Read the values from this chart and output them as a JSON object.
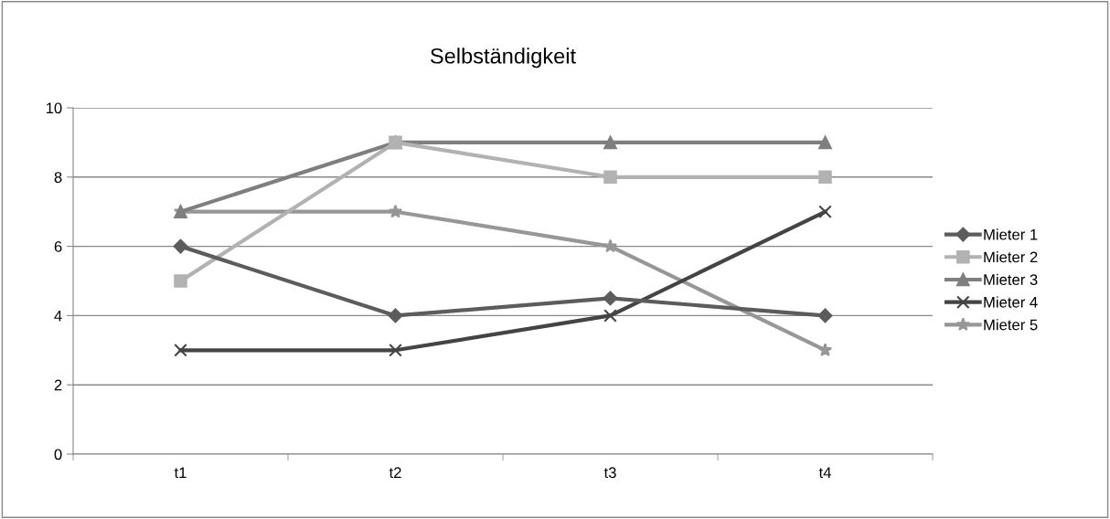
{
  "chart_data": {
    "type": "line",
    "title": "Selbständigkeit",
    "categories": [
      "t1",
      "t2",
      "t3",
      "t4"
    ],
    "series": [
      {
        "name": "Mieter 1",
        "color": "#5c5c5c",
        "marker": "diamond",
        "values": [
          6,
          4,
          4.5,
          4
        ]
      },
      {
        "name": "Mieter 2",
        "color": "#b2b2b2",
        "marker": "square",
        "values": [
          5,
          9,
          8,
          8
        ]
      },
      {
        "name": "Mieter 3",
        "color": "#7f7f7f",
        "marker": "triangle",
        "values": [
          7,
          9,
          9,
          9
        ]
      },
      {
        "name": "Mieter 4",
        "color": "#444444",
        "marker": "cross",
        "values": [
          3,
          3,
          4,
          7
        ]
      },
      {
        "name": "Mieter 5",
        "color": "#979797",
        "marker": "star",
        "values": [
          7,
          7,
          6,
          3
        ]
      }
    ],
    "ylim": [
      0,
      10
    ],
    "yticks": [
      0,
      2,
      4,
      6,
      8,
      10
    ],
    "grid": "y",
    "legend": "right",
    "line_style": "solid"
  }
}
